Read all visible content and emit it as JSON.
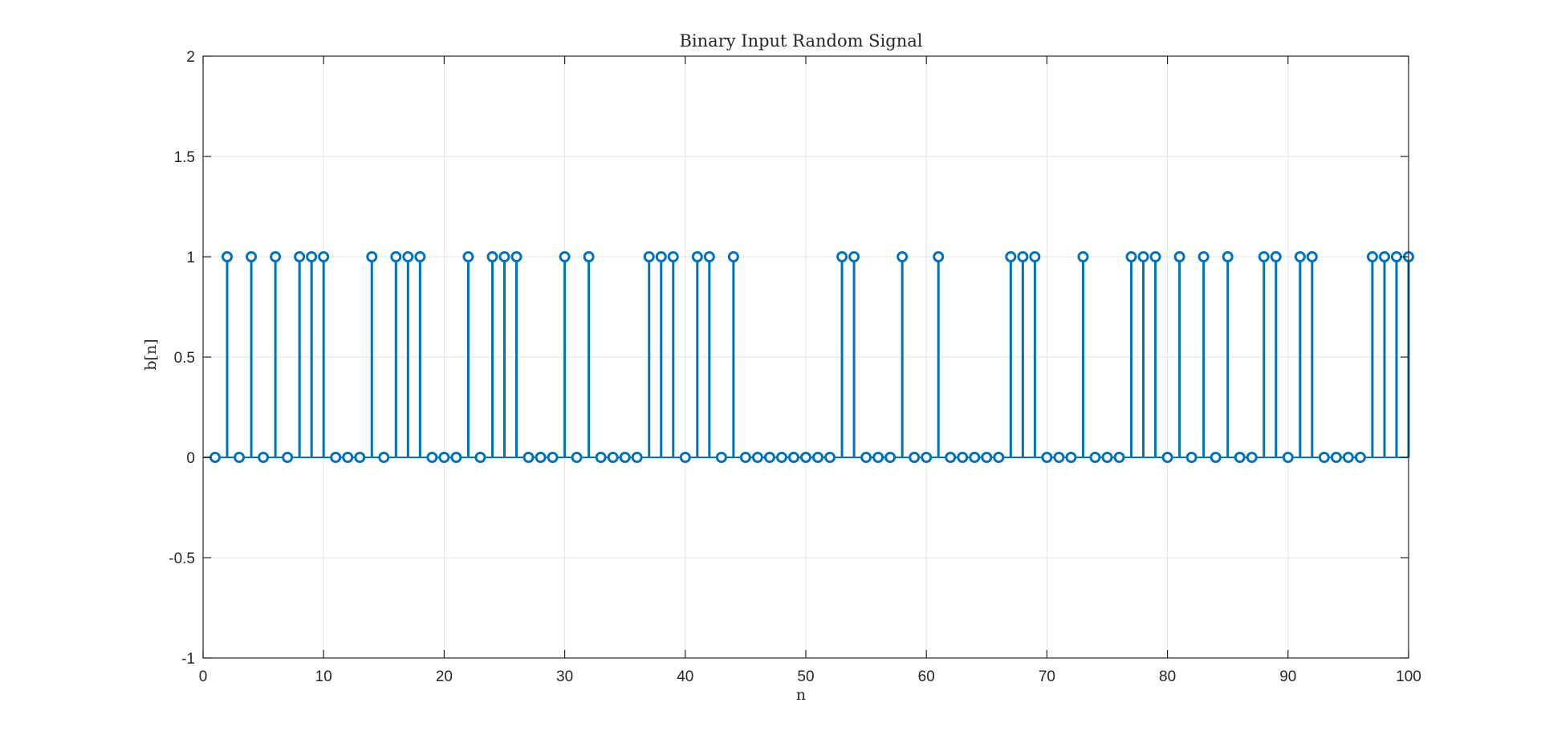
{
  "chart_data": {
    "type": "stem",
    "title": "Binary Input Random Signal",
    "xlabel": "n",
    "ylabel": "b[n]",
    "xlim": [
      0,
      100
    ],
    "ylim": [
      -1,
      2
    ],
    "xticks": [
      0,
      10,
      20,
      30,
      40,
      50,
      60,
      70,
      80,
      90,
      100
    ],
    "yticks": [
      -1,
      -0.5,
      0,
      0.5,
      1,
      1.5,
      2
    ],
    "xtick_labels": [
      "0",
      "10",
      "20",
      "30",
      "40",
      "50",
      "60",
      "70",
      "80",
      "90",
      "100"
    ],
    "ytick_labels": [
      "-1",
      "-0.5",
      "0",
      "0.5",
      "1",
      "1.5",
      "2"
    ],
    "grid": true,
    "series": [
      {
        "color": "#0072BD",
        "marker": "circle",
        "x": [
          1,
          2,
          3,
          4,
          5,
          6,
          7,
          8,
          9,
          10,
          11,
          12,
          13,
          14,
          15,
          16,
          17,
          18,
          19,
          20,
          21,
          22,
          23,
          24,
          25,
          26,
          27,
          28,
          29,
          30,
          31,
          32,
          33,
          34,
          35,
          36,
          37,
          38,
          39,
          40,
          41,
          42,
          43,
          44,
          45,
          46,
          47,
          48,
          49,
          50,
          51,
          52,
          53,
          54,
          55,
          56,
          57,
          58,
          59,
          60,
          61,
          62,
          63,
          64,
          65,
          66,
          67,
          68,
          69,
          70,
          71,
          72,
          73,
          74,
          75,
          76,
          77,
          78,
          79,
          80,
          81,
          82,
          83,
          84,
          85,
          86,
          87,
          88,
          89,
          90,
          91,
          92,
          93,
          94,
          95,
          96,
          97,
          98,
          99,
          100
        ],
        "y": [
          0,
          1,
          0,
          1,
          0,
          1,
          0,
          1,
          1,
          1,
          0,
          0,
          0,
          1,
          0,
          1,
          1,
          1,
          0,
          0,
          0,
          1,
          0,
          1,
          1,
          1,
          0,
          0,
          0,
          1,
          0,
          1,
          0,
          0,
          0,
          0,
          1,
          1,
          1,
          0,
          1,
          1,
          0,
          1,
          0,
          0,
          0,
          0,
          0,
          0,
          0,
          0,
          1,
          1,
          0,
          0,
          0,
          1,
          0,
          0,
          1,
          0,
          0,
          0,
          0,
          0,
          1,
          1,
          1,
          0,
          0,
          0,
          1,
          0,
          0,
          0,
          1,
          1,
          1,
          0,
          1,
          0,
          1,
          0,
          1,
          0,
          0,
          1,
          1,
          0,
          1,
          1,
          0,
          0,
          0,
          0,
          1,
          1,
          1,
          1
        ]
      }
    ]
  }
}
